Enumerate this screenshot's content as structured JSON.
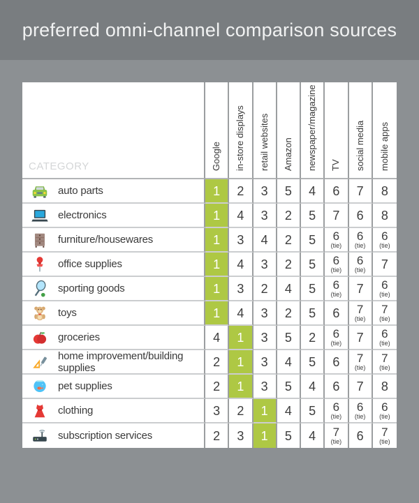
{
  "title": "preferred omni-channel comparison sources",
  "colors": {
    "banner_gray": "#797d80",
    "background_gray": "#8c9093",
    "accent_green": "#aec844",
    "cell_white": "#ffffff",
    "text_dark": "#3a3a3a"
  },
  "table": {
    "category_header": "CATEGORY",
    "tie_label": "(tie)",
    "columns": [
      "Google",
      "in-store displays",
      "retail websites",
      "Amazon",
      "newspaper/magazine",
      "TV",
      "social media",
      "mobile apps"
    ],
    "rows": [
      {
        "label": "auto parts",
        "icon": "car-icon",
        "highlight_col": 0,
        "values": [
          {
            "rank": "1"
          },
          {
            "rank": "2"
          },
          {
            "rank": "3"
          },
          {
            "rank": "5"
          },
          {
            "rank": "4"
          },
          {
            "rank": "6"
          },
          {
            "rank": "7"
          },
          {
            "rank": "8"
          }
        ]
      },
      {
        "label": "electronics",
        "icon": "laptop-icon",
        "highlight_col": 0,
        "values": [
          {
            "rank": "1"
          },
          {
            "rank": "4"
          },
          {
            "rank": "3"
          },
          {
            "rank": "2"
          },
          {
            "rank": "5"
          },
          {
            "rank": "7"
          },
          {
            "rank": "6"
          },
          {
            "rank": "8"
          }
        ]
      },
      {
        "label": "furniture/housewares",
        "icon": "dresser-icon",
        "highlight_col": 0,
        "values": [
          {
            "rank": "1"
          },
          {
            "rank": "3"
          },
          {
            "rank": "4"
          },
          {
            "rank": "2"
          },
          {
            "rank": "5"
          },
          {
            "rank": "6",
            "tie": true
          },
          {
            "rank": "6",
            "tie": true
          },
          {
            "rank": "6",
            "tie": true
          }
        ]
      },
      {
        "label": "office supplies",
        "icon": "pushpin-icon",
        "highlight_col": 0,
        "values": [
          {
            "rank": "1"
          },
          {
            "rank": "4"
          },
          {
            "rank": "3"
          },
          {
            "rank": "2"
          },
          {
            "rank": "5"
          },
          {
            "rank": "6",
            "tie": true
          },
          {
            "rank": "6",
            "tie": true
          },
          {
            "rank": "7"
          }
        ]
      },
      {
        "label": "sporting goods",
        "icon": "tennis-racket-icon",
        "highlight_col": 0,
        "values": [
          {
            "rank": "1"
          },
          {
            "rank": "3"
          },
          {
            "rank": "2"
          },
          {
            "rank": "4"
          },
          {
            "rank": "5"
          },
          {
            "rank": "6",
            "tie": true
          },
          {
            "rank": "7"
          },
          {
            "rank": "6",
            "tie": true
          }
        ]
      },
      {
        "label": "toys",
        "icon": "teddy-bear-icon",
        "highlight_col": 0,
        "values": [
          {
            "rank": "1"
          },
          {
            "rank": "4"
          },
          {
            "rank": "3"
          },
          {
            "rank": "2"
          },
          {
            "rank": "5"
          },
          {
            "rank": "6"
          },
          {
            "rank": "7",
            "tie": true
          },
          {
            "rank": "7",
            "tie": true
          }
        ]
      },
      {
        "label": "groceries",
        "icon": "apple-icon",
        "highlight_col": 1,
        "values": [
          {
            "rank": "4"
          },
          {
            "rank": "1"
          },
          {
            "rank": "3"
          },
          {
            "rank": "5"
          },
          {
            "rank": "2"
          },
          {
            "rank": "6",
            "tie": true
          },
          {
            "rank": "7"
          },
          {
            "rank": "6",
            "tie": true
          }
        ]
      },
      {
        "label": "home improvement/building supplies",
        "icon": "ruler-knife-icon",
        "highlight_col": 1,
        "values": [
          {
            "rank": "2"
          },
          {
            "rank": "1"
          },
          {
            "rank": "3"
          },
          {
            "rank": "4"
          },
          {
            "rank": "5"
          },
          {
            "rank": "6"
          },
          {
            "rank": "7",
            "tie": true
          },
          {
            "rank": "7",
            "tie": true
          }
        ]
      },
      {
        "label": "pet supplies",
        "icon": "fishbowl-icon",
        "highlight_col": 1,
        "values": [
          {
            "rank": "2"
          },
          {
            "rank": "1"
          },
          {
            "rank": "3"
          },
          {
            "rank": "5"
          },
          {
            "rank": "4"
          },
          {
            "rank": "6"
          },
          {
            "rank": "7"
          },
          {
            "rank": "8"
          }
        ]
      },
      {
        "label": "clothing",
        "icon": "dress-icon",
        "highlight_col": 2,
        "values": [
          {
            "rank": "3"
          },
          {
            "rank": "2"
          },
          {
            "rank": "1"
          },
          {
            "rank": "4"
          },
          {
            "rank": "5"
          },
          {
            "rank": "6",
            "tie": true
          },
          {
            "rank": "6",
            "tie": true
          },
          {
            "rank": "6",
            "tie": true
          }
        ]
      },
      {
        "label": "subscription services",
        "icon": "router-icon",
        "highlight_col": 2,
        "values": [
          {
            "rank": "2"
          },
          {
            "rank": "3"
          },
          {
            "rank": "1"
          },
          {
            "rank": "5"
          },
          {
            "rank": "4"
          },
          {
            "rank": "7",
            "tie": true
          },
          {
            "rank": "6"
          },
          {
            "rank": "7",
            "tie": true
          }
        ]
      }
    ]
  },
  "chart_data": {
    "type": "table",
    "title": "preferred omni-channel comparison sources",
    "categories": [
      "auto parts",
      "electronics",
      "furniture/housewares",
      "office supplies",
      "sporting goods",
      "toys",
      "groceries",
      "home improvement/building supplies",
      "pet supplies",
      "clothing",
      "subscription services"
    ],
    "series": [
      {
        "name": "Google",
        "values": [
          1,
          1,
          1,
          1,
          1,
          1,
          4,
          2,
          2,
          3,
          2
        ]
      },
      {
        "name": "in-store displays",
        "values": [
          2,
          4,
          3,
          4,
          3,
          4,
          1,
          1,
          1,
          2,
          3
        ]
      },
      {
        "name": "retail websites",
        "values": [
          3,
          3,
          4,
          3,
          2,
          3,
          3,
          3,
          3,
          1,
          1
        ]
      },
      {
        "name": "Amazon",
        "values": [
          5,
          2,
          2,
          2,
          4,
          2,
          5,
          4,
          5,
          4,
          5
        ]
      },
      {
        "name": "newspaper/magazine",
        "values": [
          4,
          5,
          5,
          5,
          5,
          5,
          2,
          5,
          4,
          5,
          4
        ]
      },
      {
        "name": "TV",
        "values": [
          6,
          7,
          6,
          6,
          6,
          6,
          6,
          6,
          6,
          6,
          7
        ]
      },
      {
        "name": "social media",
        "values": [
          7,
          6,
          6,
          6,
          7,
          7,
          7,
          7,
          7,
          6,
          6
        ]
      },
      {
        "name": "mobile apps",
        "values": [
          8,
          8,
          6,
          7,
          6,
          7,
          6,
          7,
          8,
          6,
          7
        ]
      }
    ],
    "notes": "values are preference ranks 1-8; rank 1 cells highlighted green; ties marked (tie)"
  }
}
